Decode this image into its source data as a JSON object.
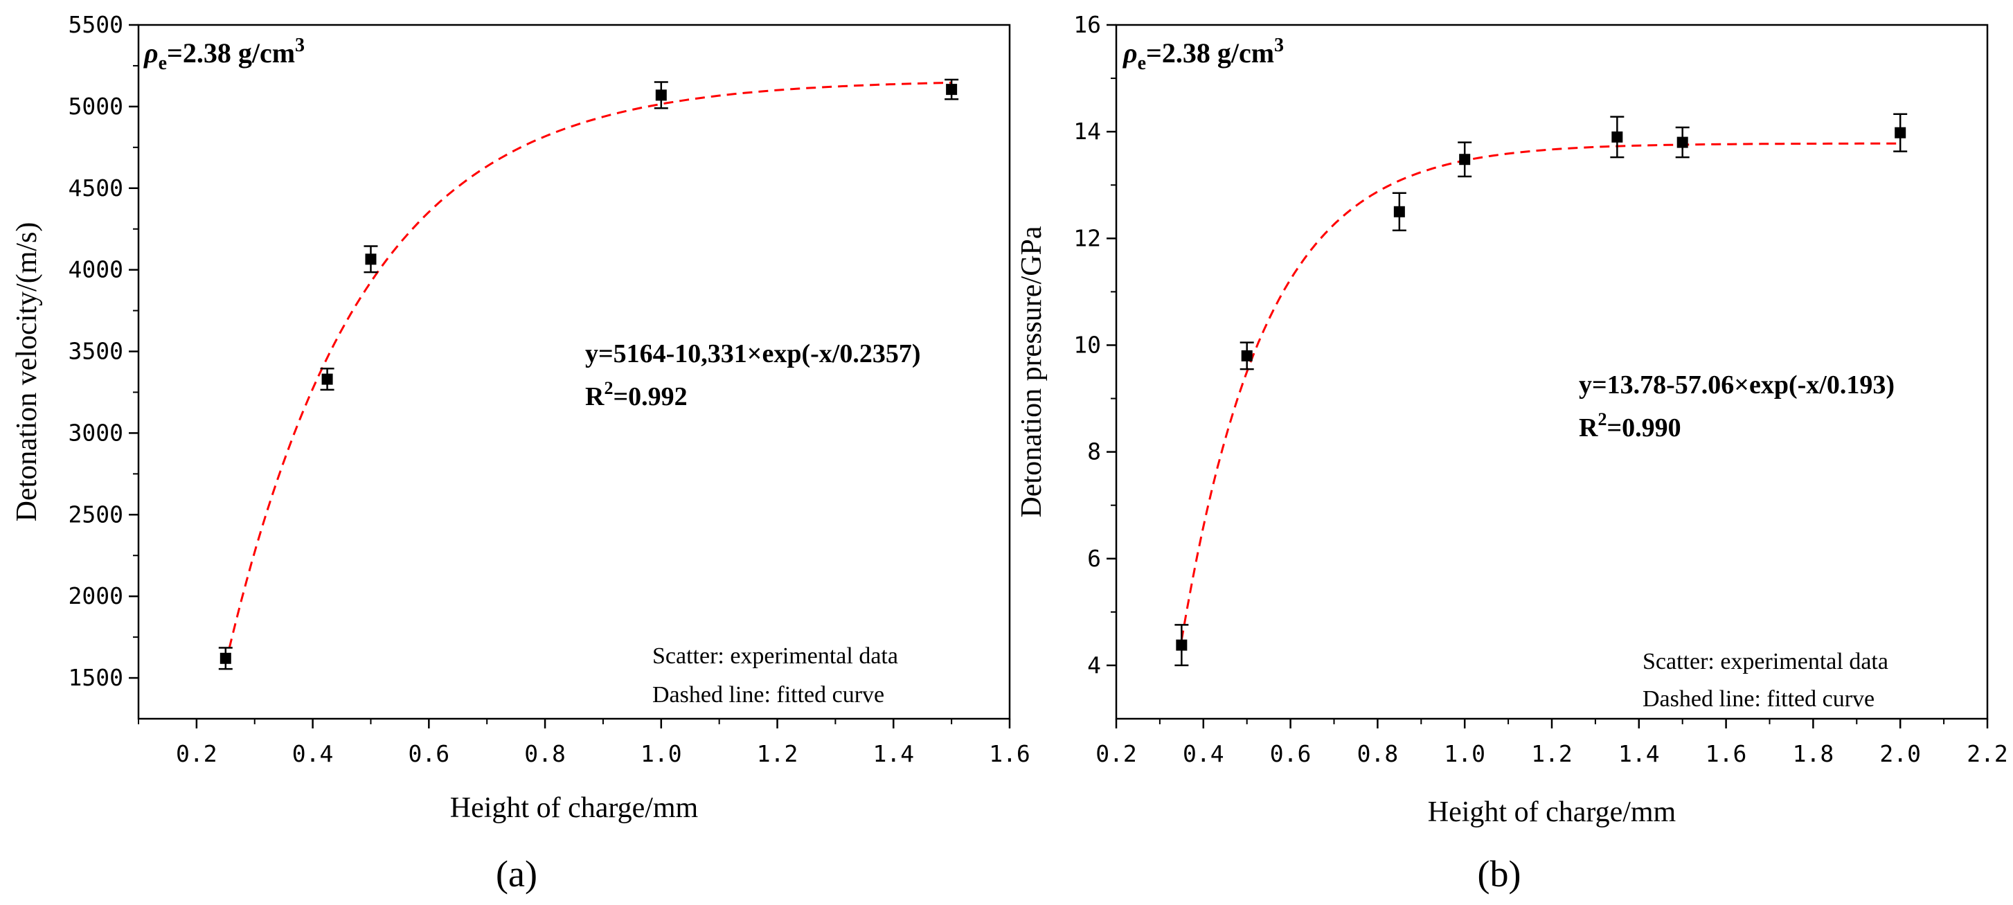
{
  "chart_data": [
    {
      "type": "scatter",
      "panel": "(a)",
      "xlabel": "Height of charge/mm",
      "ylabel": "Detonation velocity/(m/s)",
      "xlim": [
        0.1,
        1.6
      ],
      "ylim": [
        1250,
        5500
      ],
      "xticks": [
        0.2,
        0.4,
        0.6,
        0.8,
        1.0,
        1.2,
        1.4,
        1.6
      ],
      "xtick_labels": [
        "0.2",
        "0.4",
        "0.6",
        "0.8",
        "1.0",
        "1.2",
        "1.4",
        "1.6"
      ],
      "yticks": [
        1500,
        2000,
        2500,
        3000,
        3500,
        4000,
        4500,
        5000,
        5500
      ],
      "ytick_labels": [
        "1500",
        "2000",
        "2500",
        "3000",
        "3500",
        "4000",
        "4500",
        "5000",
        "5500"
      ],
      "points": [
        {
          "x": 0.25,
          "y": 1620,
          "err": 65
        },
        {
          "x": 0.425,
          "y": 3330,
          "err": 65
        },
        {
          "x": 0.5,
          "y": 4065,
          "err": 80
        },
        {
          "x": 1.0,
          "y": 5070,
          "err": 80
        },
        {
          "x": 1.5,
          "y": 5105,
          "err": 60
        }
      ],
      "fit": {
        "a": 5164,
        "b": 10331,
        "c": 0.2357,
        "x_range": [
          0.25,
          1.5
        ]
      },
      "density_label": {
        "rho": "ρ",
        "sub": "e",
        "text": "=2.38 g/cm",
        "sup": "3"
      },
      "equation": "y=5164-10,331×exp(-x/0.2357)",
      "r2": {
        "prefix": "R",
        "sup": "2",
        "value": "=0.992"
      },
      "legend_lines": [
        "Scatter: experimental data",
        "Dashed line: fitted curve"
      ],
      "series_colors": {
        "points": "#000000",
        "fit": "#ff0000"
      }
    },
    {
      "type": "scatter",
      "panel": "(b)",
      "xlabel": "Height of charge/mm",
      "ylabel": "Detonation pressure/GPa",
      "xlim": [
        0.2,
        2.2
      ],
      "ylim": [
        3,
        16
      ],
      "xticks": [
        0.2,
        0.4,
        0.6,
        0.8,
        1.0,
        1.2,
        1.4,
        1.6,
        1.8,
        2.0,
        2.2
      ],
      "xtick_labels": [
        "0.2",
        "0.4",
        "0.6",
        "0.8",
        "1.0",
        "1.2",
        "1.4",
        "1.6",
        "1.8",
        "2.0",
        "2.2"
      ],
      "yticks": [
        4,
        6,
        8,
        10,
        12,
        14,
        16
      ],
      "ytick_labels": [
        "4",
        "6",
        "8",
        "10",
        "12",
        "14",
        "16"
      ],
      "points": [
        {
          "x": 0.35,
          "y": 4.38,
          "err": 0.38
        },
        {
          "x": 0.5,
          "y": 9.8,
          "err": 0.25
        },
        {
          "x": 0.85,
          "y": 12.5,
          "err": 0.35
        },
        {
          "x": 1.0,
          "y": 13.48,
          "err": 0.32
        },
        {
          "x": 1.35,
          "y": 13.9,
          "err": 0.38
        },
        {
          "x": 1.5,
          "y": 13.8,
          "err": 0.28
        },
        {
          "x": 2.0,
          "y": 13.98,
          "err": 0.35
        }
      ],
      "fit": {
        "a": 13.78,
        "b": 57.06,
        "c": 0.193,
        "x_range": [
          0.35,
          2.0
        ]
      },
      "density_label": {
        "rho": "ρ",
        "sub": "e",
        "text": "=2.38 g/cm",
        "sup": "3"
      },
      "equation": "y=13.78-57.06×exp(-x/0.193)",
      "r2": {
        "prefix": "R",
        "sup": "2",
        "value": "=0.990"
      },
      "legend_lines": [
        "Scatter: experimental data",
        "Dashed line: fitted curve"
      ],
      "series_colors": {
        "points": "#000000",
        "fit": "#ff0000"
      }
    }
  ]
}
